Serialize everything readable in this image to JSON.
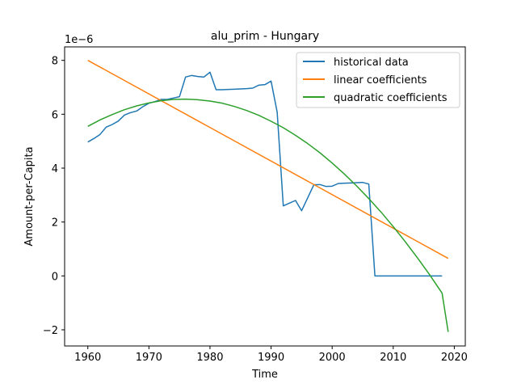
{
  "chart_data": {
    "type": "line",
    "title": "alu_prim - Hungary",
    "xlabel": "Time",
    "ylabel": "Amount-per-Capita",
    "y_scale_label": "1e−6",
    "xlim": [
      1956.2,
      2021.8
    ],
    "ylim": [
      -2.6,
      8.5
    ],
    "x_ticks": [
      1960,
      1970,
      1980,
      1990,
      2000,
      2010,
      2020
    ],
    "x_tick_labels": [
      "1960",
      "1970",
      "1980",
      "1990",
      "2000",
      "2010",
      "2020"
    ],
    "y_ticks": [
      -2,
      0,
      2,
      4,
      6,
      8
    ],
    "y_tick_labels": [
      "−2",
      "0",
      "2",
      "4",
      "6",
      "8"
    ],
    "grid": false,
    "legend_position": "top-right",
    "series": [
      {
        "name": "historical data",
        "color": "#1f77b4",
        "x": [
          1960,
          1961,
          1962,
          1963,
          1964,
          1965,
          1966,
          1967,
          1968,
          1969,
          1970,
          1971,
          1972,
          1973,
          1974,
          1975,
          1976,
          1977,
          1978,
          1979,
          1980,
          1981,
          1982,
          1983,
          1984,
          1985,
          1986,
          1987,
          1988,
          1989,
          1990,
          1991,
          1992,
          1993,
          1994,
          1995,
          1996,
          1997,
          1998,
          1999,
          2000,
          2001,
          2002,
          2003,
          2004,
          2005,
          2006,
          2007,
          2008,
          2009,
          2010,
          2011,
          2012,
          2013,
          2014,
          2015,
          2016,
          2017,
          2018
        ],
        "values": [
          4.97,
          5.1,
          5.25,
          5.52,
          5.62,
          5.75,
          5.97,
          6.06,
          6.12,
          6.28,
          6.41,
          6.47,
          6.55,
          6.55,
          6.6,
          6.65,
          7.38,
          7.44,
          7.4,
          7.38,
          7.56,
          6.91,
          6.91,
          6.92,
          6.93,
          6.94,
          6.95,
          6.97,
          7.08,
          7.1,
          7.23,
          6.08,
          2.6,
          2.7,
          2.8,
          2.42,
          2.9,
          3.38,
          3.39,
          3.32,
          3.33,
          3.43,
          3.44,
          3.45,
          3.46,
          3.47,
          3.41,
          0.0,
          0.0,
          0.0,
          0.0,
          0.0,
          0.0,
          0.0,
          0.0,
          0.0,
          0.0,
          0.0,
          0.0
        ]
      },
      {
        "name": "linear coefficients",
        "color": "#ff7f0e",
        "x": [
          1960,
          2019
        ],
        "values": [
          8.0,
          0.65
        ]
      },
      {
        "name": "quadratic coefficients",
        "color": "#2ca02c",
        "x": [
          1960,
          1962,
          1964,
          1966,
          1968,
          1970,
          1972,
          1974,
          1976,
          1978,
          1980,
          1982,
          1984,
          1986,
          1988,
          1990,
          1992,
          1994,
          1996,
          1998,
          2000,
          2002,
          2004,
          2006,
          2008,
          2010,
          2012,
          2014,
          2016,
          2018,
          2019
        ],
        "values": [
          5.55,
          5.79,
          5.99,
          6.17,
          6.31,
          6.42,
          6.5,
          6.55,
          6.56,
          6.54,
          6.49,
          6.41,
          6.29,
          6.14,
          5.96,
          5.74,
          5.5,
          5.22,
          4.91,
          4.57,
          4.19,
          3.78,
          3.34,
          2.87,
          2.37,
          1.83,
          1.26,
          0.66,
          0.03,
          -0.64,
          -2.08
        ]
      }
    ]
  }
}
